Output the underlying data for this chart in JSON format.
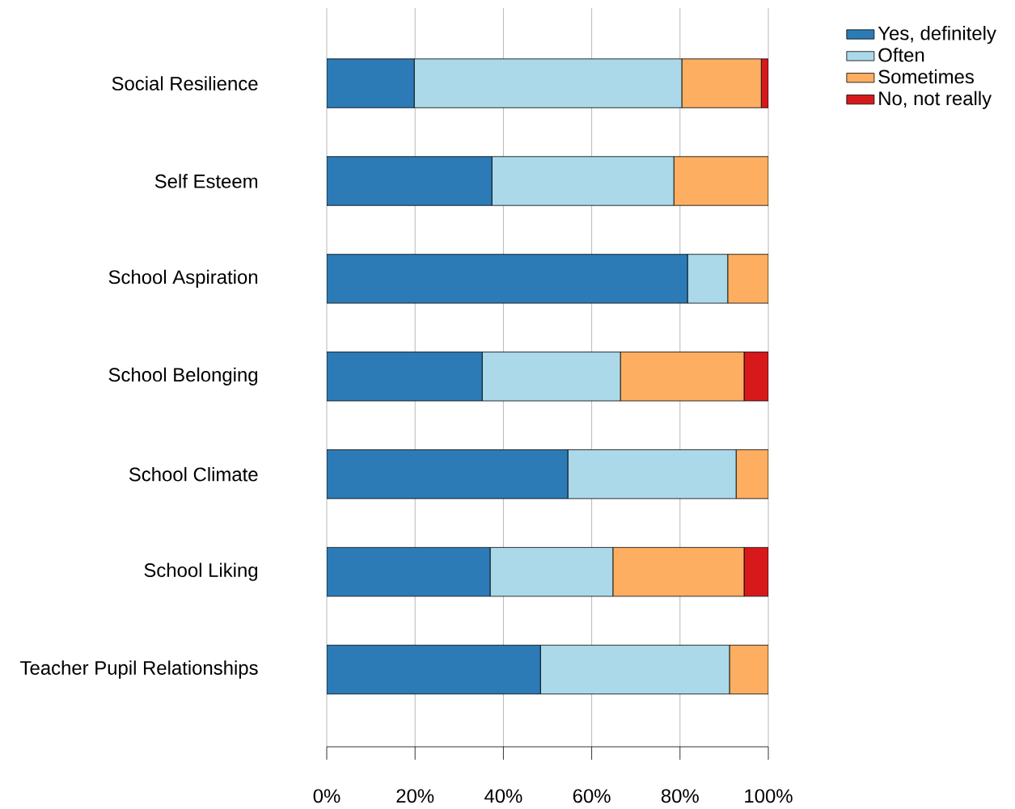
{
  "chart_data": {
    "type": "bar",
    "orientation": "horizontal",
    "stacked": true,
    "categories": [
      "Social Resilience",
      "Self Esteem",
      "School Aspiration",
      "School Belonging",
      "School Climate",
      "School Liking",
      "Teacher Pupil Relationships"
    ],
    "series": [
      {
        "name": "Yes, definitely",
        "color": "#2c7bb6",
        "values": [
          19.8,
          37.4,
          81.7,
          35.2,
          54.6,
          37.0,
          48.4
        ]
      },
      {
        "name": "Often",
        "color": "#abd9e9",
        "values": [
          60.6,
          41.2,
          9.1,
          31.3,
          38.1,
          27.8,
          42.8
        ]
      },
      {
        "name": "Sometimes",
        "color": "#fdae61",
        "values": [
          18.0,
          21.4,
          9.2,
          28.0,
          7.3,
          29.7,
          8.8
        ]
      },
      {
        "name": "No, not really",
        "color": "#d7191c",
        "values": [
          1.6,
          0,
          0,
          5.5,
          0,
          5.5,
          0
        ]
      }
    ],
    "xlim": [
      0,
      100
    ],
    "xticks": [
      {
        "value": 0,
        "label": "0%"
      },
      {
        "value": 20,
        "label": "20%"
      },
      {
        "value": 40,
        "label": "40%"
      },
      {
        "value": 60,
        "label": "60%"
      },
      {
        "value": 80,
        "label": "80%"
      },
      {
        "value": 100,
        "label": "100%"
      }
    ],
    "grid": "x",
    "legend": "top right"
  }
}
